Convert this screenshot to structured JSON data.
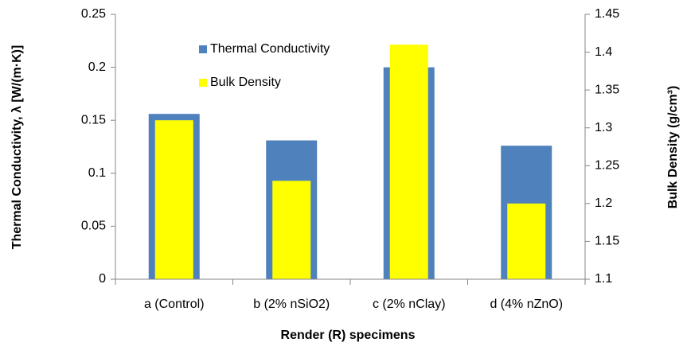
{
  "chart_data": {
    "type": "bar",
    "categories": [
      "a (Control)",
      "b (2% nSiO2)",
      "c (2% nClay)",
      "d (4% nZnO)"
    ],
    "series": [
      {
        "name": "Thermal Conductivity",
        "color": "#4f81bd",
        "values": [
          0.156,
          0.131,
          0.2,
          0.126
        ]
      },
      {
        "name": "Bulk Density",
        "color": "#ffff00",
        "axis": "y2",
        "values": [
          1.31,
          1.23,
          1.41,
          1.2
        ]
      }
    ],
    "xlabel": "Render (R) specimens",
    "ylabel": "Thermal Conductivity, λ [W/(m·K)]",
    "y2label": "Bulk Density (g/cm³)",
    "ylim": [
      0,
      0.25
    ],
    "yticks": [
      0,
      0.05,
      0.1,
      0.15,
      0.2,
      0.25
    ],
    "y2lim": [
      1.1,
      1.45
    ],
    "y2ticks": [
      1.1,
      1.15,
      1.2,
      1.25,
      1.3,
      1.35,
      1.4,
      1.45
    ],
    "grid": false,
    "legend": "top-left"
  }
}
